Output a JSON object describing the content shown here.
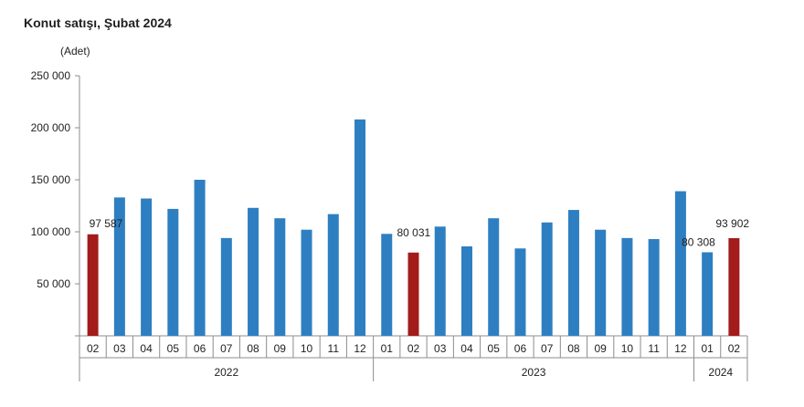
{
  "chart_data": {
    "type": "bar",
    "title": "Konut satışı, Şubat 2024",
    "ylabel": "(Adet)",
    "ylim": [
      0,
      250000
    ],
    "yticks": [
      50000,
      100000,
      150000,
      200000,
      250000
    ],
    "ytick_labels": [
      "50 000",
      "100 000",
      "150 000",
      "200 000",
      "250 000"
    ],
    "categories": [
      "02",
      "03",
      "04",
      "05",
      "06",
      "07",
      "08",
      "09",
      "10",
      "11",
      "12",
      "01",
      "02",
      "03",
      "04",
      "05",
      "06",
      "07",
      "08",
      "09",
      "10",
      "11",
      "12",
      "01",
      "02"
    ],
    "years": [
      {
        "label": "2022",
        "start": 0,
        "end": 10
      },
      {
        "label": "2023",
        "start": 11,
        "end": 22
      },
      {
        "label": "2024",
        "start": 23,
        "end": 24
      }
    ],
    "values": [
      97587,
      133000,
      132000,
      122000,
      150000,
      94000,
      123000,
      113000,
      102000,
      117000,
      208000,
      98000,
      80031,
      105000,
      86000,
      113000,
      84000,
      109000,
      121000,
      102000,
      94000,
      93000,
      139000,
      80308,
      93902
    ],
    "highlight": [
      0,
      12,
      24
    ],
    "data_labels": [
      {
        "index": 0,
        "text": "97 587"
      },
      {
        "index": 12,
        "text": "80 031"
      },
      {
        "index": 23,
        "text": "80 308"
      },
      {
        "index": 24,
        "text": "93 902"
      }
    ],
    "colors": {
      "bar": "#2e7fc1",
      "highlight": "#a31b1b",
      "axis": "#8c8c8c"
    },
    "grid": false
  }
}
